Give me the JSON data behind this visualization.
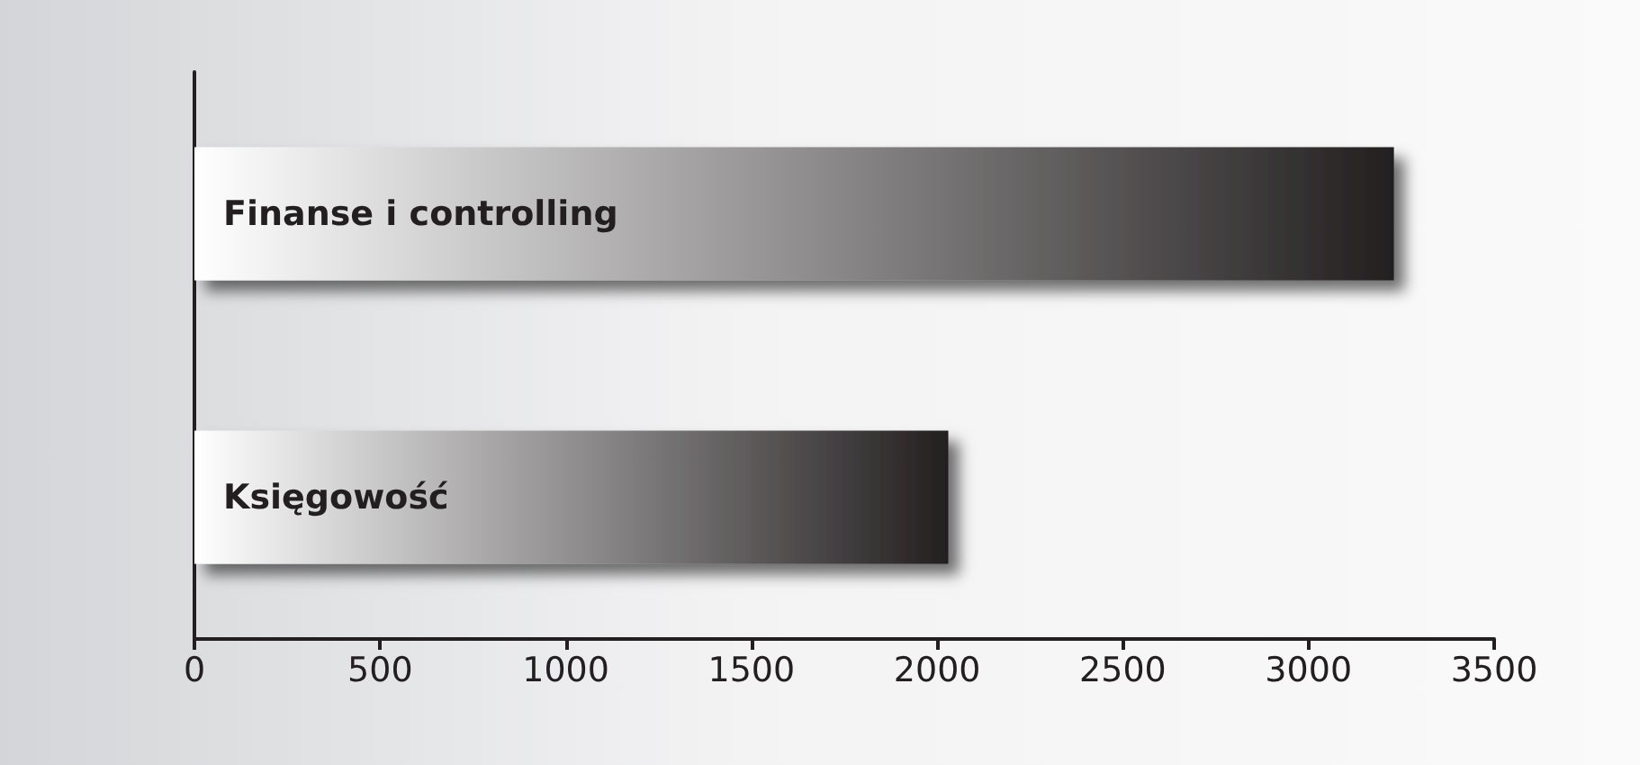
{
  "chart_data": {
    "type": "bar",
    "orientation": "horizontal",
    "categories": [
      "Finanse i controlling",
      "Księgowość"
    ],
    "values": [
      3230,
      2030
    ],
    "color": "#231f20",
    "xlim": [
      0,
      3500
    ],
    "xticks": [
      0,
      500,
      1000,
      1500,
      2000,
      2500,
      3000,
      3500
    ],
    "grid": false
  }
}
